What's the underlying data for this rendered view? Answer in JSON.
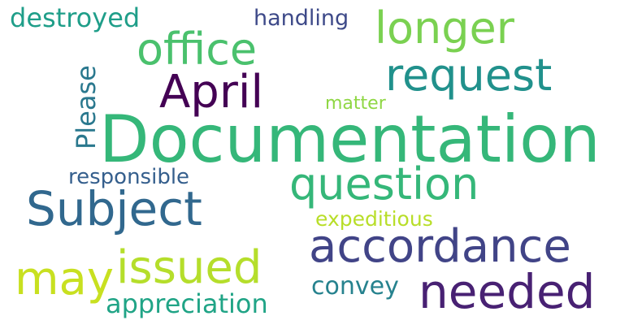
{
  "word_cloud": {
    "words": {
      "documentation": {
        "text": "Documentation",
        "color": "#35b779"
      },
      "accordance": {
        "text": "accordance",
        "color": "#414487"
      },
      "issued": {
        "text": "issued",
        "color": "#b5de2b"
      },
      "subject": {
        "text": "Subject",
        "color": "#31688e"
      },
      "april": {
        "text": "April",
        "color": "#440154"
      },
      "question": {
        "text": "question",
        "color": "#35b779"
      },
      "request": {
        "text": "request",
        "color": "#21918c"
      },
      "longer": {
        "text": "longer",
        "color": "#7ad151"
      },
      "office": {
        "text": "office",
        "color": "#4ac16d"
      },
      "needed": {
        "text": "needed",
        "color": "#482173"
      },
      "may": {
        "text": "may",
        "color": "#c8e020"
      },
      "destroyed": {
        "text": "destroyed",
        "color": "#1f9e89"
      },
      "handling": {
        "text": "handling",
        "color": "#3e4a89"
      },
      "please": {
        "text": "Please",
        "color": "#2a788e"
      },
      "matter": {
        "text": "matter",
        "color": "#8fd744"
      },
      "responsible": {
        "text": "responsible",
        "color": "#355f8d"
      },
      "expeditious": {
        "text": "expeditious",
        "color": "#b8de29"
      },
      "convey": {
        "text": "convey",
        "color": "#26828e"
      },
      "appreciation": {
        "text": "appreciation",
        "color": "#20a486"
      }
    }
  }
}
